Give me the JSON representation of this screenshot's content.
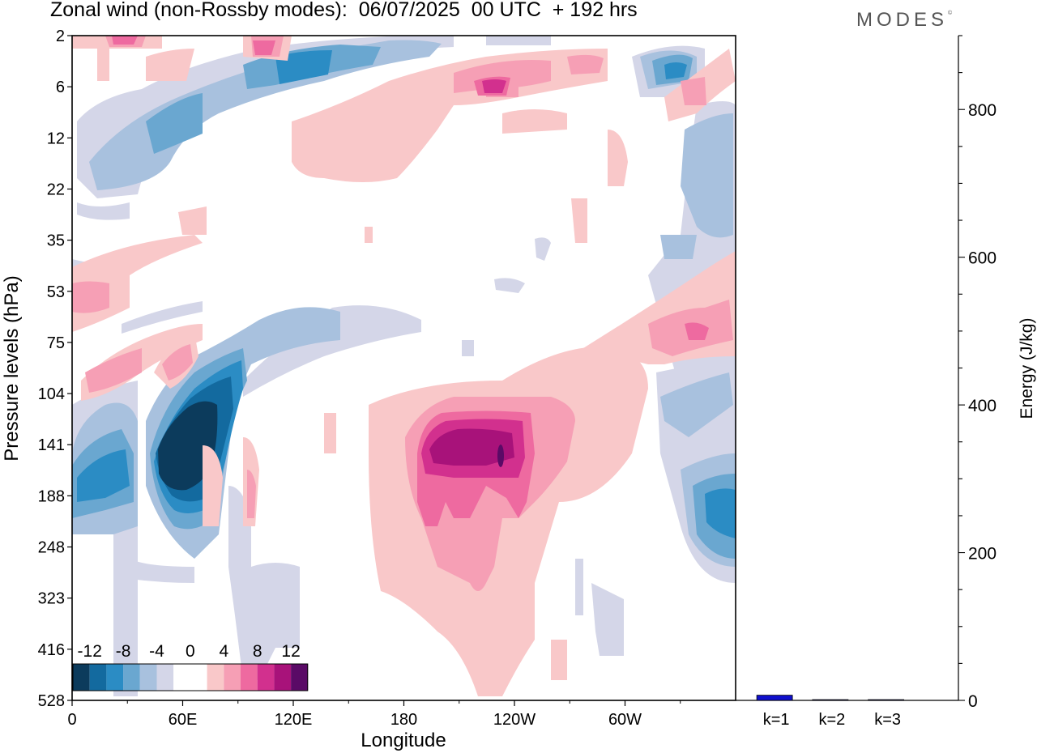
{
  "header": {
    "title": "Zonal wind (non-Rossby modes):  06/07/2025  00 UTC  + 192 hrs",
    "logo": "MODES",
    "logo_mark": "©"
  },
  "chart_data": [
    {
      "type": "heatmap",
      "title": "Zonal wind (non-Rossby modes):  06/07/2025  00 UTC  + 192 hrs",
      "xlabel": "Longitude",
      "ylabel": "Pressure levels (hPa)",
      "x_ticks": [
        "0",
        "60E",
        "120E",
        "180",
        "120W",
        "60W"
      ],
      "x_tick_degrees": [
        0,
        60,
        120,
        180,
        240,
        300
      ],
      "xlim": [
        0,
        360
      ],
      "y_levels": [
        "2",
        "6",
        "12",
        "22",
        "35",
        "53",
        "75",
        "104",
        "141",
        "188",
        "248",
        "323",
        "416",
        "528"
      ],
      "legend": {
        "labels": [
          "-12",
          "-8",
          "-4",
          "0",
          "4",
          "8",
          "12"
        ],
        "colors": [
          "#0c3b5c",
          "#136a9f",
          "#2b8cc4",
          "#6aa7d0",
          "#a8c1de",
          "#d4d6e8",
          "#ffffff",
          "#ffffff",
          "#f9c8c9",
          "#f69fb5",
          "#ee6aa0",
          "#d2308e",
          "#a8127a",
          "#5a0a66"
        ],
        "placement": "bottom-left"
      },
      "features": [
        {
          "description": "strong easterly core (<-12)",
          "lon": [
            22,
            40
          ],
          "level": [
            "104",
            "188"
          ]
        },
        {
          "description": "westerly core (>8)",
          "lon": [
            190,
            240
          ],
          "level": [
            "104",
            "188"
          ]
        },
        {
          "description": "easterly band",
          "lon": [
            40,
            110
          ],
          "level": [
            "2",
            "12"
          ]
        }
      ]
    },
    {
      "type": "bar",
      "categories": [
        "k=1",
        "k=2",
        "k=3"
      ],
      "values": [
        7,
        1,
        1
      ],
      "ylabel": "Energy (J/kg)",
      "ylim": [
        0,
        900
      ],
      "y_ticks": [
        0,
        200,
        400,
        600,
        800
      ],
      "bar_color": "#1010cc"
    }
  ]
}
